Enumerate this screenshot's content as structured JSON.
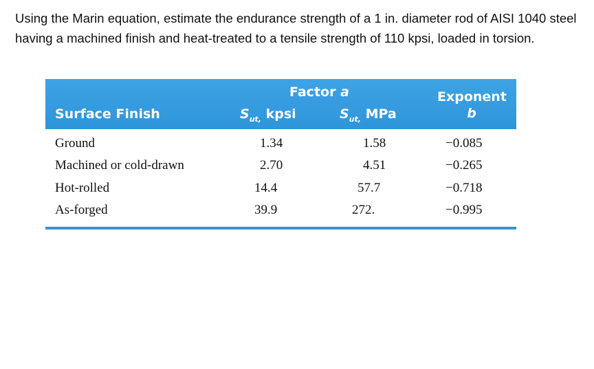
{
  "question": "Using the Marin equation, estimate the endurance strength of a 1 in. diameter rod of AISI 1040 steel having a machined finish and heat-treated to a tensile strength of 110 kpsi, loaded in torsion.",
  "table": {
    "group_header": {
      "label": "Factor",
      "symbol": "a"
    },
    "columns": [
      "Surface Finish",
      {
        "symbol": "S",
        "subscript": "ut,",
        "unit": "kpsi"
      },
      {
        "symbol": "S",
        "subscript": "ut,",
        "unit": "MPa"
      },
      {
        "label": "Exponent",
        "symbol": "b"
      }
    ],
    "rows": [
      [
        "Ground",
        "1.34",
        "1.58",
        "−0.085"
      ],
      [
        "Machined or cold-drawn",
        "2.70",
        "4.51",
        "−0.265"
      ],
      [
        "Hot-rolled",
        "14.4",
        "57.7",
        "−0.718"
      ],
      [
        "As-forged",
        "39.9",
        "272.",
        "−0.995"
      ]
    ]
  }
}
